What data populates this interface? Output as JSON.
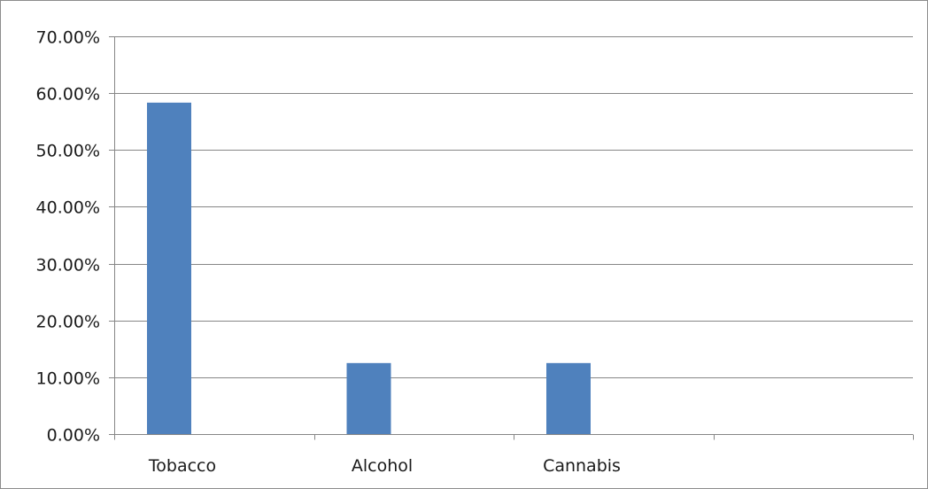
{
  "chart_data": {
    "type": "bar",
    "categories": [
      "Tobacco",
      "Alcohol",
      "Cannabis",
      ""
    ],
    "series": [
      {
        "values": [
          58.33,
          12.5,
          12.5,
          null
        ]
      }
    ],
    "y_tick_labels": [
      "0.00%",
      "10.00%",
      "20.00%",
      "30.00%",
      "40.00%",
      "50.00%",
      "60.00%",
      "70.00%"
    ],
    "ylim": [
      0,
      70
    ],
    "y_unit": "%",
    "title": "",
    "xlabel": "",
    "ylabel": "",
    "grid": true,
    "legend": "none",
    "colors": {
      "bar": "#4f81bd",
      "gridline": "#868686",
      "axis": "#868686",
      "text": "#1a1a1a"
    }
  }
}
